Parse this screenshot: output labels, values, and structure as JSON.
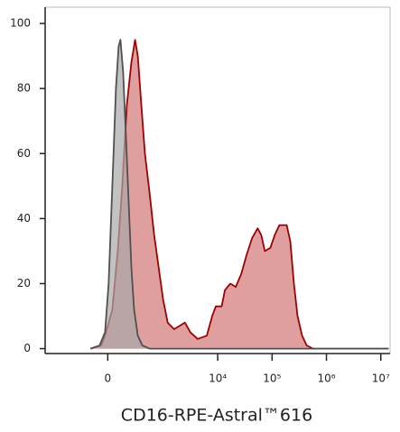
{
  "chart_data": {
    "type": "area",
    "xlabel": "CD16-RPE-Astral™616",
    "xscale": "asinh",
    "xlim": [
      -1340,
      14800000
    ],
    "ylim": [
      -1.5,
      105
    ],
    "xticks": [
      0,
      {
        "value": 10000,
        "label": "10⁴"
      },
      {
        "value": 100000,
        "label": "10⁵"
      },
      {
        "value": 1000000,
        "label": "10⁶"
      },
      {
        "value": 10000000,
        "label": "10⁷"
      }
    ],
    "yticks": [
      0,
      20,
      40,
      60,
      80,
      100
    ],
    "series": [
      {
        "color": "#a00000",
        "fill": "#d98e8e",
        "x": [
          -152,
          -52,
          -22,
          37,
          83,
          124,
          171,
          223,
          272,
          312,
          371,
          439,
          540,
          663,
          809,
          984,
          1195,
          1569,
          1978,
          2495,
          3143,
          4275,
          6289,
          7923,
          9234,
          11818,
          13566,
          17081,
          21470,
          27170,
          34200,
          42940,
          54150,
          63080,
          73530,
          92910,
          112670,
          136420,
          185630,
          216600,
          252510,
          294310,
          356820,
          431870,
          565630,
          14000000
        ],
        "values": [
          0,
          1,
          4,
          12,
          30,
          50,
          75,
          88,
          95,
          90,
          75,
          60,
          48,
          35,
          25,
          15,
          8,
          6,
          7,
          8,
          5,
          3,
          4,
          10,
          13,
          13,
          18,
          20,
          19,
          23,
          29,
          34,
          37,
          35,
          30,
          31,
          35,
          38,
          38,
          33,
          20,
          10,
          4,
          1,
          0,
          0
        ]
      },
      {
        "color": "#505050",
        "fill": "#a8a8a8",
        "x": [
          -152,
          -67,
          -22,
          7,
          37,
          67,
          91,
          107,
          133,
          161,
          191,
          223,
          259,
          312,
          388,
          540,
          14000000
        ],
        "values": [
          0,
          1,
          5,
          20,
          50,
          80,
          93,
          95,
          85,
          65,
          45,
          25,
          12,
          4,
          1,
          0,
          0
        ]
      }
    ]
  }
}
